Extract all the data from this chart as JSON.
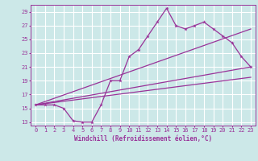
{
  "xlabel": "Windchill (Refroidissement éolien,°C)",
  "background_color": "#cce8e8",
  "grid_color": "#ffffff",
  "line_color": "#993399",
  "xlim": [
    -0.5,
    23.5
  ],
  "ylim": [
    12.5,
    30.0
  ],
  "xticks": [
    0,
    1,
    2,
    3,
    4,
    5,
    6,
    7,
    8,
    9,
    10,
    11,
    12,
    13,
    14,
    15,
    16,
    17,
    18,
    19,
    20,
    21,
    22,
    23
  ],
  "yticks": [
    13,
    15,
    17,
    19,
    21,
    23,
    25,
    27,
    29
  ],
  "series1_x": [
    0,
    1,
    2,
    3,
    4,
    5,
    6,
    7,
    8,
    9,
    10,
    11,
    12,
    13,
    14,
    15,
    16,
    17,
    18,
    19,
    20,
    21,
    22,
    23
  ],
  "series1_y": [
    15.5,
    15.5,
    15.5,
    15.0,
    13.2,
    13.0,
    13.0,
    15.5,
    19.0,
    19.0,
    22.5,
    23.5,
    25.5,
    27.5,
    29.5,
    27.0,
    26.5,
    27.0,
    27.5,
    26.5,
    25.5,
    24.5,
    22.5,
    21.0
  ],
  "series2_x": [
    0,
    23
  ],
  "series2_y": [
    15.5,
    21.0
  ],
  "series3_x": [
    0,
    23
  ],
  "series3_y": [
    15.5,
    26.5
  ],
  "series4_x": [
    0,
    23
  ],
  "series4_y": [
    15.5,
    19.5
  ],
  "tick_fontsize": 5.0,
  "xlabel_fontsize": 5.5
}
